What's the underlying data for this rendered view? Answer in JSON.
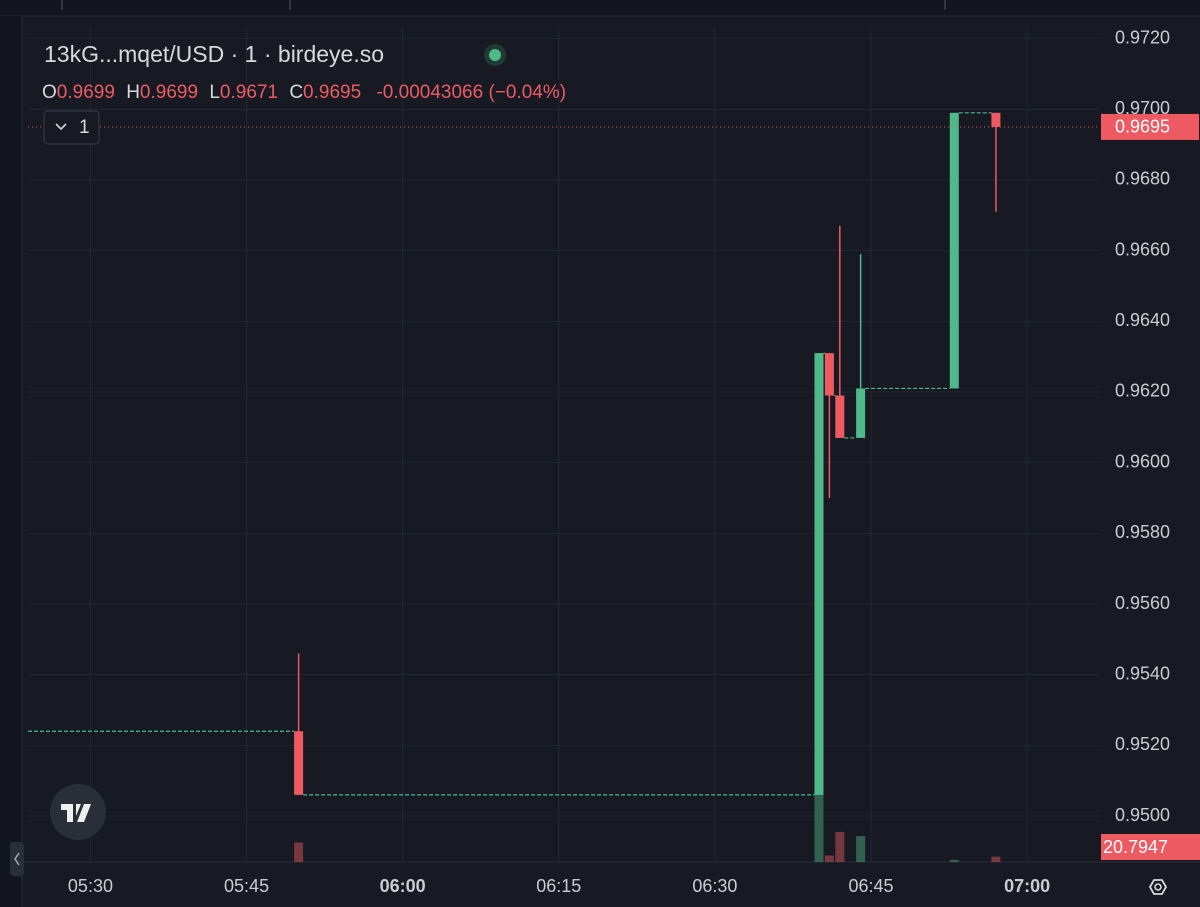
{
  "chart_data": {
    "type": "candlestick",
    "title": "13kG...mqet/USD · 1 · birdeye.so",
    "interval": "1",
    "legend": {
      "open_label": "O",
      "high_label": "H",
      "low_label": "L",
      "close_label": "C",
      "change": "-0.00043066 (−0.04%)"
    },
    "x": [
      "05:50",
      "06:40",
      "06:41",
      "06:42",
      "06:44",
      "06:53",
      "06:57"
    ],
    "open": [
      0.9524,
      0.9506,
      0.9631,
      0.9619,
      0.9607,
      0.9621,
      0.9699
    ],
    "high": [
      0.9546,
      0.9631,
      0.9631,
      0.9667,
      0.9659,
      0.9699,
      0.9699
    ],
    "low": [
      0.9506,
      0.9506,
      0.959,
      0.9607,
      0.9607,
      0.9621,
      0.9671
    ],
    "close": [
      0.9506,
      0.9631,
      0.9619,
      0.9607,
      0.9621,
      0.9699,
      0.9695
    ],
    "volume": [
      75,
      270,
      25,
      116,
      100,
      8,
      20.7947
    ],
    "up_color": "#4fb98a",
    "down_color": "#ee5a62",
    "xlim": [
      "05:24",
      "07:07"
    ],
    "xticks": [
      "05:30",
      "05:45",
      "06:00",
      "06:15",
      "06:30",
      "06:45",
      "07:00"
    ],
    "ylim": [
      0.9487,
      0.9723
    ],
    "yticks": [
      {
        "value": 0.95,
        "label": "0.9500"
      },
      {
        "value": 0.952,
        "label": "0.9520"
      },
      {
        "value": 0.954,
        "label": "0.9540"
      },
      {
        "value": 0.956,
        "label": "0.9560"
      },
      {
        "value": 0.958,
        "label": "0.9580"
      },
      {
        "value": 0.96,
        "label": "0.9600"
      },
      {
        "value": 0.962,
        "label": "0.9620"
      },
      {
        "value": 0.964,
        "label": "0.9640"
      },
      {
        "value": 0.966,
        "label": "0.9660"
      },
      {
        "value": 0.968,
        "label": "0.9680"
      },
      {
        "value": 0.97,
        "label": "0.9700"
      },
      {
        "value": 0.972,
        "label": "0.9720"
      }
    ],
    "grid": true
  }
}
